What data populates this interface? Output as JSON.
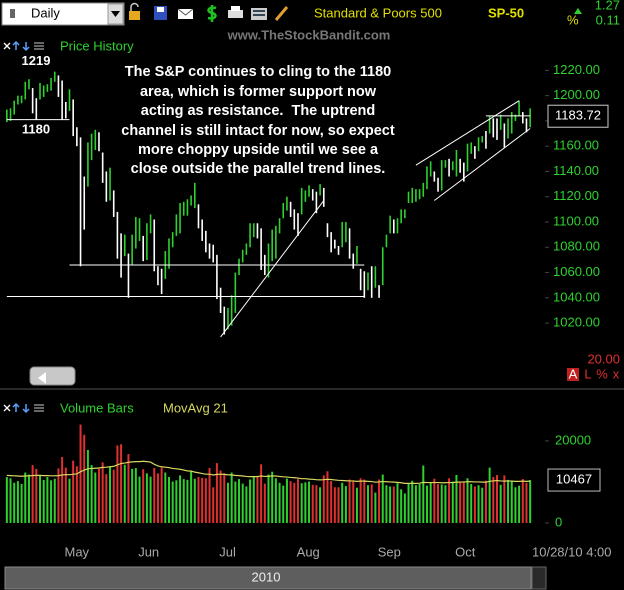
{
  "toolbar": {
    "period": "Daily",
    "name": "Standard & Poors 500",
    "symbol": "SP-50",
    "change": 1.27,
    "percent_sign": "%",
    "change_pct": 0.11,
    "watermark": "www.TheStockBandit.com"
  },
  "chart_data": [
    {
      "type": "hilo",
      "title": "Price History",
      "color": "#2fd12f",
      "down_color": "#ffffff",
      "high": [
        1189,
        1190,
        1196,
        1200,
        1200,
        1211,
        1213,
        1206,
        1198,
        1210,
        1208,
        1209,
        1214,
        1219,
        1216,
        1212,
        1195,
        1205,
        1197,
        1175,
        1167,
        1136,
        1163,
        1170,
        1173,
        1171,
        1155,
        1140,
        1143,
        1125,
        1108,
        1091,
        1090,
        1075,
        1090,
        1104,
        1103,
        1089,
        1099,
        1106,
        1102,
        1065,
        1063,
        1077,
        1087,
        1092,
        1106,
        1115,
        1116,
        1118,
        1121,
        1131,
        1114,
        1102,
        1093,
        1083,
        1082,
        1074,
        1048,
        1033,
        1032,
        1042,
        1060,
        1071,
        1078,
        1083,
        1099,
        1099,
        1099,
        1095,
        1074,
        1083,
        1094,
        1097,
        1103,
        1115,
        1120,
        1116,
        1110,
        1107,
        1127,
        1125,
        1129,
        1126,
        1124,
        1130,
        1127,
        1099,
        1092,
        1086,
        1081,
        1100,
        1100,
        1095,
        1075,
        1081,
        1063,
        1061,
        1060,
        1065,
        1065,
        1050,
        1080,
        1090,
        1105,
        1102,
        1103,
        1110,
        1110,
        1124,
        1127,
        1126,
        1126,
        1131,
        1144,
        1148,
        1140,
        1135,
        1149,
        1149,
        1150,
        1148,
        1157,
        1150,
        1147,
        1162,
        1163,
        1160,
        1167,
        1168,
        1172,
        1184,
        1182,
        1182,
        1185,
        1178,
        1182,
        1187,
        1185,
        1196,
        1187,
        1182,
        1190
      ],
      "low": [
        1179,
        1180,
        1185,
        1193,
        1194,
        1197,
        1205,
        1186,
        1181,
        1197,
        1199,
        1203,
        1204,
        1211,
        1199,
        1181,
        1182,
        1188,
        1168,
        1160,
        1065,
        1094,
        1128,
        1149,
        1157,
        1156,
        1131,
        1116,
        1117,
        1104,
        1071,
        1056,
        1073,
        1040,
        1066,
        1079,
        1085,
        1069,
        1070,
        1091,
        1061,
        1050,
        1043,
        1055,
        1063,
        1080,
        1089,
        1091,
        1105,
        1105,
        1113,
        1111,
        1095,
        1085,
        1076,
        1071,
        1068,
        1039,
        1028,
        1011,
        1015,
        1018,
        1028,
        1058,
        1068,
        1074,
        1080,
        1088,
        1087,
        1062,
        1058,
        1056,
        1069,
        1071,
        1091,
        1103,
        1109,
        1104,
        1094,
        1089,
        1106,
        1116,
        1120,
        1117,
        1107,
        1121,
        1112,
        1088,
        1076,
        1079,
        1074,
        1080,
        1084,
        1071,
        1063,
        1067,
        1046,
        1040,
        1046,
        1040,
        1048,
        1040,
        1050,
        1080,
        1091,
        1091,
        1091,
        1099,
        1103,
        1115,
        1115,
        1116,
        1118,
        1120,
        1126,
        1136,
        1132,
        1124,
        1125,
        1143,
        1136,
        1141,
        1136,
        1139,
        1132,
        1140,
        1154,
        1150,
        1156,
        1163,
        1158,
        1170,
        1167,
        1165,
        1173,
        1159,
        1166,
        1170,
        1180,
        1184,
        1178,
        1171,
        1175
      ],
      "ylim": [
        971,
        1248
      ],
      "yticks": [
        {
          "value": 1020,
          "label": "1020.00"
        },
        {
          "value": 1040,
          "label": "1040.00"
        },
        {
          "value": 1060,
          "label": "1060.00"
        },
        {
          "value": 1080,
          "label": "1080.00"
        },
        {
          "value": 1100,
          "label": "1100.00"
        },
        {
          "value": 1120,
          "label": "1120.00"
        },
        {
          "value": 1140,
          "label": "1140.00"
        },
        {
          "value": 1160,
          "label": "1160.00"
        },
        {
          "value": 1180,
          "label": "1180.00"
        },
        {
          "value": 1200,
          "label": "1200.00"
        },
        {
          "value": 1220,
          "label": "1220.00"
        }
      ],
      "last_value": 1183.72,
      "levels": [
        1219,
        1180
      ],
      "trend_lines": [
        {
          "x": [
            0,
            17
          ],
          "y": [
            1181,
            1181
          ]
        },
        {
          "x": [
            17,
            97
          ],
          "y": [
            1066,
            1066
          ]
        },
        {
          "x": [
            0,
            97
          ],
          "y": [
            1041,
            1041
          ]
        },
        {
          "x": [
            58,
            86
          ],
          "y": [
            1009,
            1117
          ]
        },
        {
          "x": [
            111,
            139
          ],
          "y": [
            1145,
            1196
          ]
        },
        {
          "x": [
            116,
            142
          ],
          "y": [
            1117,
            1174
          ]
        },
        {
          "x": [
            130,
            142
          ],
          "y": [
            1184,
            1184
          ]
        }
      ],
      "annotation": [
        "The S&P continues to cling to the 1180",
        "area, which is former support now",
        "acting as resistance.  The uptrend",
        "channel is still intact for now, so expect",
        "more choppy upside until we see a",
        "close outside the parallel trend lines."
      ],
      "scale_value": "20.00",
      "panel_buttons": [
        "A",
        "L",
        "%",
        "x"
      ]
    },
    {
      "type": "bar",
      "title": "Volume Bars",
      "categories": [
        null,
        null,
        null,
        null,
        null,
        null,
        null,
        null,
        null,
        null,
        null,
        null,
        null,
        null,
        null,
        null,
        null,
        "May",
        null,
        null,
        null,
        null,
        null,
        null,
        null,
        null,
        null,
        null,
        null,
        null,
        null,
        null,
        null,
        null,
        null,
        null,
        null,
        "Jun",
        null,
        null,
        null,
        null,
        null,
        null,
        null,
        null,
        null,
        null,
        null,
        null,
        null,
        null,
        null,
        null,
        null,
        null,
        null,
        null,
        null,
        "Jul",
        null,
        null,
        null,
        null,
        null,
        null,
        null,
        null,
        null,
        null,
        null,
        null,
        null,
        null,
        null,
        null,
        null,
        null,
        null,
        null,
        "Aug",
        null,
        null,
        null,
        null,
        null,
        null,
        null,
        null,
        null,
        null,
        null,
        null,
        null,
        null,
        null,
        null,
        null,
        null,
        null,
        null,
        null,
        "Sep",
        null,
        null,
        null,
        null,
        null,
        null,
        null,
        null,
        null,
        null,
        null,
        null,
        null,
        null,
        null,
        null,
        null,
        null,
        null,
        null,
        "Oct",
        null,
        null,
        null,
        null,
        null,
        null,
        null,
        null,
        null,
        null,
        null,
        null,
        null,
        null,
        null,
        null,
        null,
        null,
        null
      ],
      "series": [
        {
          "name": "Volume Bars",
          "type": "bar",
          "color": "#2fd12f",
          "down_color": "#e03030",
          "values": [
            11200,
            10900,
            9800,
            10200,
            9500,
            12300,
            11800,
            14100,
            13200,
            11700,
            10500,
            11200,
            10400,
            10800,
            13300,
            16100,
            13500,
            10800,
            15200,
            13800,
            24000,
            21500,
            17800,
            14100,
            12300,
            13200,
            14800,
            11900,
            13600,
            13000,
            18900,
            19200,
            14200,
            16800,
            13200,
            13400,
            11300,
            13100,
            12100,
            11300,
            13400,
            12100,
            13500,
            12300,
            11200,
            10100,
            10400,
            11600,
            10700,
            10500,
            12800,
            10800,
            11200,
            11000,
            10900,
            13400,
            8700,
            14600,
            12800,
            12100,
            9800,
            12300,
            10100,
            10700,
            9600,
            8900,
            10600,
            11200,
            11500,
            14300,
            9600,
            11800,
            12500,
            10900,
            9800,
            9100,
            10800,
            10200,
            9800,
            10700,
            9700,
            9900,
            10100,
            9300,
            9200,
            8700,
            11600,
            12600,
            10200,
            8700,
            8700,
            9800,
            9000,
            10600,
            10300,
            8600,
            10900,
            10600,
            9200,
            9400,
            7400,
            10600,
            11800,
            9200,
            8900,
            8900,
            9700,
            8200,
            7200,
            9500,
            10300,
            9200,
            9500,
            14000,
            9100,
            9800,
            10800,
            9500,
            9400,
            9200,
            10900,
            10100,
            11700,
            9800,
            10100,
            10900,
            9500,
            8900,
            9200,
            8600,
            10300,
            13500,
            11200,
            11700,
            9300,
            11600,
            10500,
            10100,
            8700,
            9100,
            10700,
            9800,
            10467
          ]
        },
        {
          "name": "MovAvg 21",
          "type": "line",
          "color": "#d8d860",
          "values": [
            11600,
            11550,
            11500,
            11450,
            11400,
            11450,
            11500,
            11550,
            11600,
            11600,
            11550,
            11550,
            11500,
            11500,
            11550,
            11700,
            11800,
            11750,
            11900,
            11950,
            12500,
            12900,
            13200,
            13300,
            13350,
            13400,
            13550,
            13600,
            13700,
            13800,
            14150,
            14500,
            14600,
            14800,
            14900,
            14950,
            14950,
            15050,
            14950,
            14850,
            14300,
            13900,
            13700,
            13600,
            13500,
            13300,
            13200,
            13100,
            12900,
            12700,
            12650,
            12400,
            12250,
            12050,
            11900,
            11900,
            11700,
            11850,
            11900,
            11850,
            11750,
            11700,
            11600,
            11550,
            11450,
            11350,
            11300,
            11300,
            11300,
            11450,
            11350,
            11400,
            11450,
            11450,
            11350,
            11250,
            11200,
            11100,
            11050,
            10950,
            10800,
            10800,
            10700,
            10650,
            10550,
            10500,
            10550,
            10650,
            10600,
            10500,
            10400,
            10350,
            10300,
            10250,
            10250,
            10150,
            10200,
            10200,
            10150,
            10100,
            9950,
            10000,
            10100,
            10050,
            10000,
            9950,
            9900,
            9800,
            9650,
            9650,
            9650,
            9650,
            9700,
            9900,
            9850,
            9850,
            9850,
            9850,
            9800,
            9800,
            9850,
            9850,
            9950,
            9950,
            10000,
            10050,
            10050,
            10000,
            10000,
            9950,
            9950,
            10150,
            10250,
            10350,
            10250,
            10200,
            10250,
            10200,
            10150,
            10150,
            10200,
            10150,
            10200
          ]
        }
      ],
      "ylim": [
        -4150,
        31200
      ],
      "yticks": [
        0,
        20000
      ]
    }
  ],
  "footer": {
    "timestamp": "10/28/10 4:00",
    "year": "2010"
  }
}
